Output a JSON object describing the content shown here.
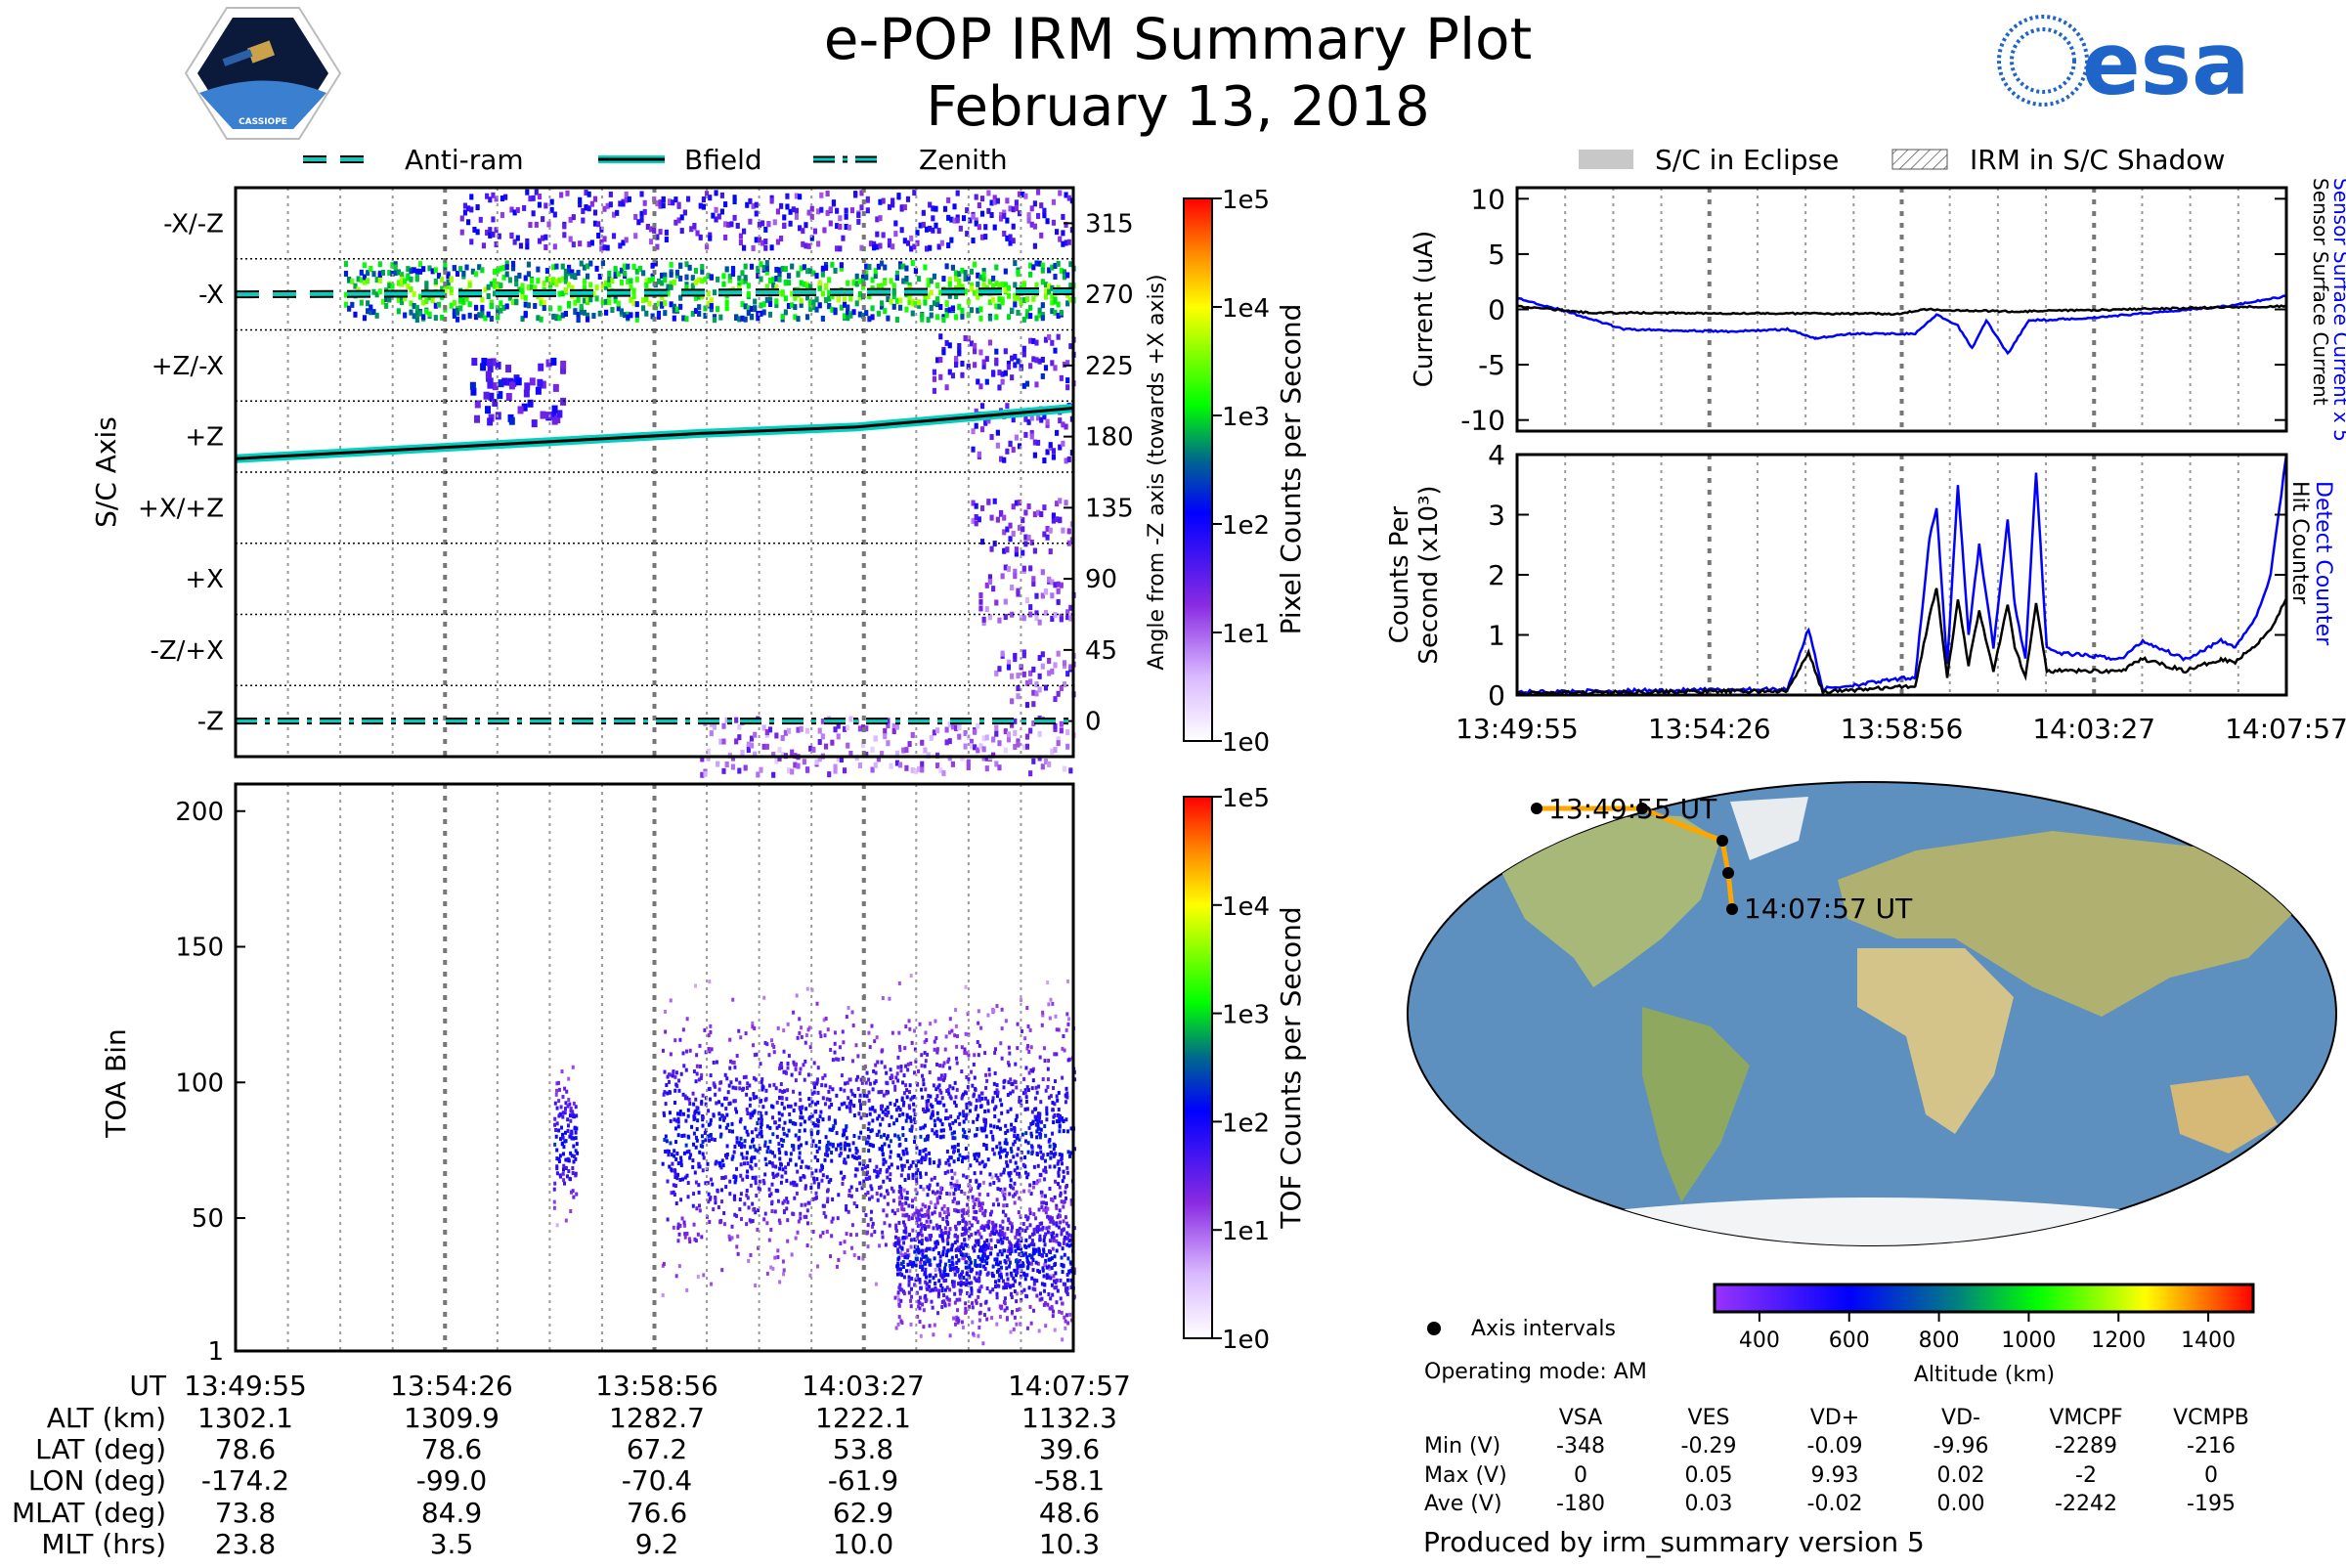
{
  "header": {
    "title": "e-POP IRM Summary Plot",
    "date": "February 13, 2018",
    "left_logo_text": "CASSIOPE",
    "right_logo_text": "esa"
  },
  "legend_left": [
    "Anti-ram",
    "Bfield",
    "Zenith"
  ],
  "legend_right": [
    "S/C in Eclipse",
    "IRM in S/C Shadow"
  ],
  "colors": {
    "accent_blue": "#0000ff",
    "cyan": "#00d0c0",
    "track": "#ffa500"
  },
  "chart_data": [
    {
      "type": "heatmap",
      "id": "sc-axis",
      "ylabel": "S/C Axis",
      "ylabel_right": "Angle from -Z axis (towards +X axis)",
      "yticks_left": [
        "-X/-Z",
        "-X",
        "+Z/-X",
        "+Z",
        "+X/+Z",
        "+X",
        "-Z/+X",
        "-Z"
      ],
      "yticks_right": [
        315,
        270,
        225,
        180,
        135,
        90,
        45,
        0
      ],
      "ylim": [
        -22.5,
        337.5
      ],
      "xlim_seconds": [
        0,
        1082
      ],
      "colorbar_label": "Pixel Counts per Second",
      "colorbar_ticks": [
        "1e5",
        "1e4",
        "1e3",
        "1e2",
        "1e1",
        "1e0"
      ],
      "bands": [
        {
          "angle": 315,
          "t_start": 290,
          "level": 1.6
        },
        {
          "angle": 270,
          "t_start": 140,
          "level": 2.6
        },
        {
          "angle": 225,
          "t_start": 900,
          "level": 1.7
        },
        {
          "angle": 180,
          "t_start": 950,
          "level": 1.5
        },
        {
          "angle": 120,
          "t_start": 950,
          "level": 1.4
        },
        {
          "angle": 78,
          "t_start": 960,
          "level": 1.2
        },
        {
          "angle": 25,
          "t_start": 980,
          "level": 1.3
        },
        {
          "angle": -18,
          "t_start": 600,
          "level": 1.0
        }
      ],
      "lines": {
        "Anti-ram": {
          "t": [
            0,
            1082
          ],
          "angle": [
            270,
            272
          ]
        },
        "Bfield": {
          "t": [
            0,
            300,
            600,
            800,
            1082
          ],
          "angle": [
            166,
            174,
            182,
            186,
            198
          ]
        },
        "Zenith": {
          "t": [
            0,
            1082
          ],
          "angle": [
            0,
            0
          ]
        }
      }
    },
    {
      "type": "heatmap",
      "id": "toa",
      "ylabel": "TOA Bin",
      "yticks": [
        1,
        50,
        100,
        150,
        200
      ],
      "ylim": [
        1,
        210
      ],
      "colorbar_label": "TOF Counts per Second",
      "colorbar_ticks": [
        "1e5",
        "1e4",
        "1e3",
        "1e2",
        "1e1",
        "1e0"
      ],
      "clouds": [
        {
          "t_start": 410,
          "t_end": 440,
          "center": 78,
          "spread": 12
        },
        {
          "t_start": 550,
          "t_end": 1082,
          "center": 80,
          "spread": 22
        },
        {
          "t_start": 850,
          "t_end": 1082,
          "center": 35,
          "spread": 12
        }
      ]
    },
    {
      "type": "line",
      "id": "current",
      "ylabel": "Current (uA)",
      "ylim": [
        -11,
        11
      ],
      "yticks": [
        10,
        5,
        0,
        -5,
        -10
      ],
      "series": [
        {
          "name": "Sensor Surface Current x 5",
          "color": "#0000ff",
          "t": [
            0,
            60,
            150,
            300,
            380,
            420,
            470,
            560,
            590,
            620,
            640,
            660,
            690,
            720,
            800,
            1000,
            1082
          ],
          "values": [
            1,
            0,
            -1.8,
            -2,
            -1.8,
            -2.6,
            -2.2,
            -2.2,
            -0.5,
            -1.5,
            -3.5,
            -1,
            -4,
            -1,
            -0.8,
            0.3,
            1.2
          ]
        },
        {
          "name": "Sensor Surface Current",
          "color": "#000000",
          "t": [
            0,
            100,
            540,
            570,
            700,
            1082
          ],
          "values": [
            0.3,
            -0.3,
            -0.4,
            0,
            -0.2,
            0.3
          ]
        }
      ]
    },
    {
      "type": "line",
      "id": "counts",
      "ylabel": "Counts Per Second (x10^3)",
      "ylim": [
        0,
        4
      ],
      "yticks": [
        4,
        3,
        2,
        1,
        0
      ],
      "xticks": [
        "13:49:55",
        "13:54:26",
        "13:58:56",
        "14:03:27",
        "14:07:57"
      ],
      "series": [
        {
          "name": "Detect Counter",
          "color": "#0000ff",
          "t": [
            0,
            380,
            410,
            430,
            560,
            580,
            590,
            605,
            620,
            635,
            650,
            670,
            690,
            700,
            715,
            730,
            745,
            760,
            850,
            880,
            940,
            990,
            1010,
            1040,
            1060,
            1082
          ],
          "values": [
            0.05,
            0.1,
            1.1,
            0.1,
            0.3,
            2.6,
            3.1,
            0.5,
            3.5,
            1,
            2.5,
            0.8,
            2.9,
            1.5,
            0.6,
            3.7,
            0.8,
            0.7,
            0.6,
            0.9,
            0.6,
            0.9,
            0.8,
            1.3,
            2,
            4
          ]
        },
        {
          "name": "Hit Counter",
          "color": "#000000",
          "t": [
            0,
            380,
            410,
            430,
            560,
            580,
            590,
            605,
            620,
            635,
            650,
            670,
            690,
            700,
            715,
            730,
            745,
            760,
            850,
            880,
            940,
            990,
            1010,
            1040,
            1060,
            1082
          ],
          "values": [
            0.03,
            0.07,
            0.7,
            0.05,
            0.15,
            1.3,
            1.8,
            0.3,
            1.6,
            0.5,
            1.4,
            0.4,
            1.5,
            0.8,
            0.3,
            1.5,
            0.4,
            0.4,
            0.4,
            0.6,
            0.4,
            0.6,
            0.55,
            0.85,
            1.1,
            1.6
          ]
        }
      ]
    }
  ],
  "map": {
    "start_label": "13:49:55 UT",
    "end_label": "14:07:57 UT",
    "legend_label": "Axis intervals",
    "colorbar_label": "Altitude (km)",
    "colorbar_ticks": [
      400,
      600,
      800,
      1000,
      1200,
      1400
    ],
    "track_lon": [
      -174.2,
      -99.0,
      -70.4,
      -61.9,
      -58.1
    ],
    "track_lat": [
      78.6,
      78.6,
      67.2,
      53.8,
      39.6
    ]
  },
  "operating_mode": "Operating mode: AM",
  "ephemeris": {
    "labels": [
      "UT",
      "ALT (km)",
      "LAT (deg)",
      "LON (deg)",
      "MLAT (deg)",
      "MLT (hrs)"
    ],
    "rows": [
      [
        "13:49:55",
        "13:54:26",
        "13:58:56",
        "14:03:27",
        "14:07:57"
      ],
      [
        "1302.1",
        "1309.9",
        "1282.7",
        "1222.1",
        "1132.3"
      ],
      [
        "78.6",
        "78.6",
        "67.2",
        "53.8",
        "39.6"
      ],
      [
        "-174.2",
        "-99.0",
        "-70.4",
        "-61.9",
        "-58.1"
      ],
      [
        "73.8",
        "84.9",
        "76.6",
        "62.9",
        "48.6"
      ],
      [
        "23.8",
        "3.5",
        "9.2",
        "10.0",
        "10.3"
      ]
    ]
  },
  "voltages": {
    "headers": [
      "VSA",
      "VES",
      "VD+",
      "VD-",
      "VMCPF",
      "VCMPB"
    ],
    "row_labels": [
      "Min (V)",
      "Max (V)",
      "Ave (V)"
    ],
    "rows": [
      [
        "-348",
        "-0.29",
        "-0.09",
        "-9.96",
        "-2289",
        "-216"
      ],
      [
        "0",
        "0.05",
        "9.93",
        "0.02",
        "-2",
        "0"
      ],
      [
        "-180",
        "0.03",
        "-0.02",
        "0.00",
        "-2242",
        "-195"
      ]
    ]
  },
  "footer": "Produced by irm_summary version 5"
}
